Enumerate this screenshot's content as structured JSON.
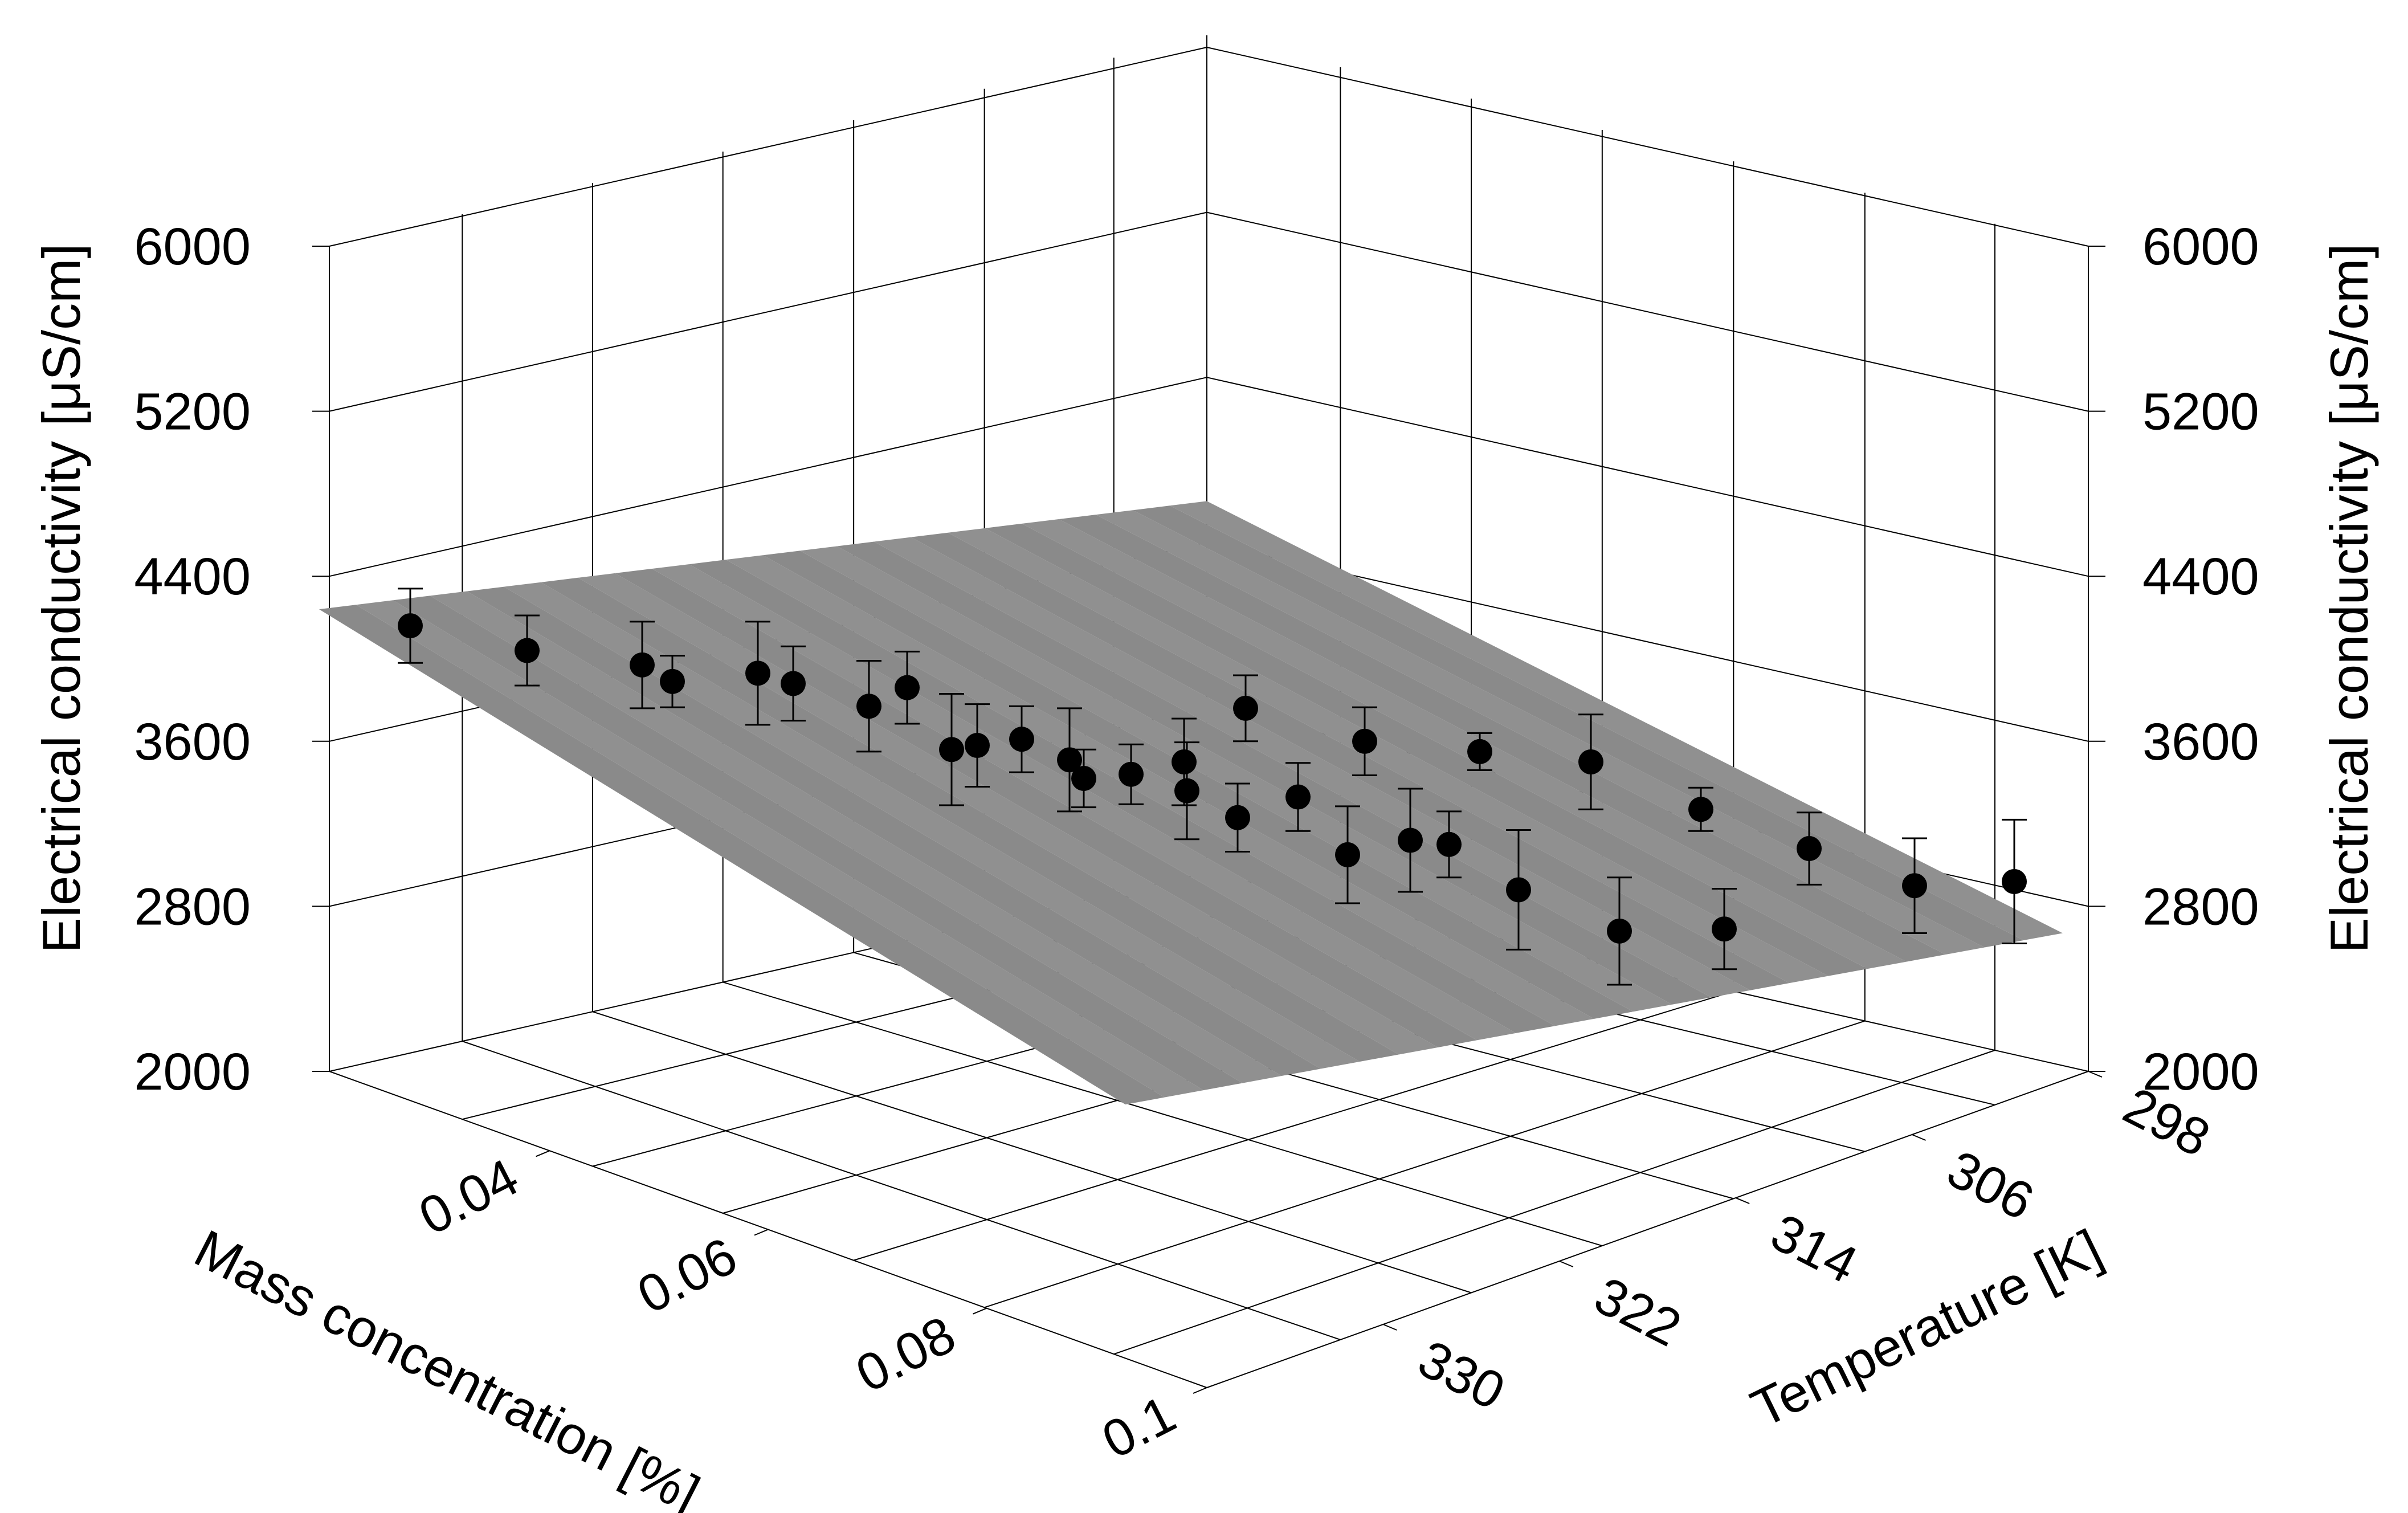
{
  "chart_data": {
    "type": "scatter3d",
    "title": "",
    "zlabel": "Electrical conductivity [μS/cm]",
    "xlabel": "Mass concentration [%]",
    "ylabel": "Temperature [K]",
    "z_ticks": [
      "2000",
      "2800",
      "3600",
      "4400",
      "5200",
      "6000"
    ],
    "x_ticks": [
      "0.04",
      "0.06",
      "0.08",
      "0.1"
    ],
    "y_ticks": [
      "298",
      "306",
      "314",
      "322",
      "330"
    ],
    "zlim": [
      2000,
      6000
    ],
    "surface": {
      "color": "#8a8a8a",
      "model": "fitted plane",
      "corners": [
        {
          "where": "c=0.02, T=330",
          "z": 4240
        },
        {
          "where": "c=0.1, T=330",
          "z": 3800
        },
        {
          "where": "c=0.02, T=290",
          "z": 3110
        },
        {
          "where": "c=0.1, T=290",
          "z": 2670
        }
      ]
    },
    "series": [
      {
        "name": "measured",
        "marker_color": "#000000",
        "points": [
          {
            "z": 4160,
            "err": 360
          },
          {
            "z": 4040,
            "err": 340
          },
          {
            "z": 3970,
            "err": 420
          },
          {
            "z": 3890,
            "err": 250
          },
          {
            "z": 3930,
            "err": 500
          },
          {
            "z": 3880,
            "err": 360
          },
          {
            "z": 3770,
            "err": 440
          },
          {
            "z": 3860,
            "err": 350
          },
          {
            "z": 3560,
            "err": 540
          },
          {
            "z": 3580,
            "err": 400
          },
          {
            "z": 3610,
            "err": 320
          },
          {
            "z": 3510,
            "err": 500
          },
          {
            "z": 3420,
            "err": 280
          },
          {
            "z": 3440,
            "err": 290
          },
          {
            "z": 3500,
            "err": 420
          },
          {
            "z": 3360,
            "err": 470
          },
          {
            "z": 3230,
            "err": 330
          },
          {
            "z": 3760,
            "err": 320
          },
          {
            "z": 3330,
            "err": 330
          },
          {
            "z": 3050,
            "err": 470
          },
          {
            "z": 3600,
            "err": 330
          },
          {
            "z": 3120,
            "err": 500
          },
          {
            "z": 3100,
            "err": 320
          },
          {
            "z": 3550,
            "err": 180
          },
          {
            "z": 2880,
            "err": 580
          },
          {
            "z": 3500,
            "err": 460
          },
          {
            "z": 2680,
            "err": 520
          },
          {
            "z": 3270,
            "err": 210
          },
          {
            "z": 2690,
            "err": 390
          },
          {
            "z": 3080,
            "err": 350
          },
          {
            "z": 2900,
            "err": 460
          },
          {
            "z": 2920,
            "err": 600
          }
        ]
      }
    ]
  }
}
